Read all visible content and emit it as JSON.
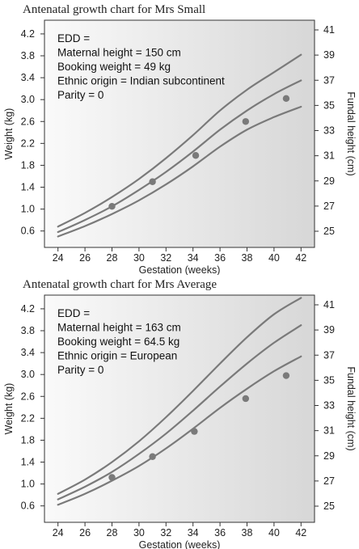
{
  "chart_data": [
    {
      "type": "line",
      "title": "Antenatal growth chart for Mrs Small",
      "info_lines": [
        "EDD =",
        "Maternal height = 150 cm",
        "Booking weight = 49 kg",
        "Ethnic origin = Indian subcontinent",
        "Parity = 0"
      ],
      "xlabel": "Gestation (weeks)",
      "ylabel": "Weight (kg)",
      "y2label": "Fundal height (cm)",
      "xlim": [
        23,
        43
      ],
      "ylim": [
        0.3,
        4.45
      ],
      "x_ticks": [
        24,
        26,
        28,
        30,
        32,
        34,
        36,
        38,
        40,
        42
      ],
      "y_ticks": [
        0.6,
        1.0,
        1.4,
        1.8,
        2.2,
        2.6,
        3.0,
        3.4,
        3.8,
        4.2
      ],
      "y2_ticks": [
        25,
        27,
        29,
        31,
        33,
        35,
        37,
        39,
        41
      ],
      "y_tick_labels": [
        "0.6",
        "1.0",
        "1.4",
        "1.8",
        "2.2",
        "2.6",
        "3.0",
        "3.4",
        "3.8",
        "4.2"
      ],
      "y2_tick_labels": [
        "25",
        "27",
        "29",
        "31",
        "33",
        "35",
        "37",
        "39",
        "41"
      ],
      "series": [
        {
          "x": [
            24,
            26,
            28,
            30,
            32,
            34,
            36,
            38,
            40,
            42
          ],
          "values": [
            0.68,
            0.93,
            1.22,
            1.55,
            1.93,
            2.35,
            2.8,
            3.18,
            3.5,
            3.82
          ]
        },
        {
          "x": [
            24,
            26,
            28,
            30,
            32,
            34,
            36,
            38,
            40,
            42
          ],
          "values": [
            0.58,
            0.8,
            1.05,
            1.35,
            1.68,
            2.05,
            2.45,
            2.8,
            3.1,
            3.35
          ]
        },
        {
          "x": [
            24,
            26,
            28,
            30,
            32,
            34,
            36,
            38,
            40,
            42
          ],
          "values": [
            0.5,
            0.69,
            0.91,
            1.16,
            1.45,
            1.78,
            2.14,
            2.45,
            2.68,
            2.87
          ]
        }
      ],
      "points": {
        "x": [
          28,
          31,
          34.2,
          37.9,
          40.9
        ],
        "values": [
          1.05,
          1.5,
          1.98,
          2.6,
          3.02
        ]
      },
      "colors": {
        "curve": "#7a7a7a",
        "point": "#7a7a7a",
        "plot_bg_left": "#fafafa",
        "plot_bg_right": "#d7d7d7"
      }
    },
    {
      "type": "line",
      "title": "Antenatal growth chart for Mrs Average",
      "info_lines": [
        "EDD =",
        "Maternal height = 163 cm",
        "Booking weight = 64.5 kg",
        "Ethnic origin = European",
        "Parity = 0"
      ],
      "xlabel": "Gestation (weeks)",
      "ylabel": "Weight (kg)",
      "y2label": "Fundal height (cm)",
      "xlim": [
        23,
        43
      ],
      "ylim": [
        0.3,
        4.45
      ],
      "x_ticks": [
        24,
        26,
        28,
        30,
        32,
        34,
        36,
        38,
        40,
        42
      ],
      "y_ticks": [
        0.6,
        1.0,
        1.4,
        1.8,
        2.2,
        2.6,
        3.0,
        3.4,
        3.8,
        4.2
      ],
      "y2_ticks": [
        25,
        27,
        29,
        31,
        33,
        35,
        37,
        39,
        41
      ],
      "y_tick_labels": [
        "0.6",
        "1.0",
        "1.4",
        "1.8",
        "2.2",
        "2.6",
        "3.0",
        "3.4",
        "3.8",
        "4.2"
      ],
      "y2_tick_labels": [
        "25",
        "27",
        "29",
        "31",
        "33",
        "35",
        "37",
        "39",
        "41"
      ],
      "series": [
        {
          "x": [
            24,
            26,
            28,
            30,
            32,
            34,
            36,
            38,
            40,
            42
          ],
          "values": [
            0.82,
            1.08,
            1.4,
            1.78,
            2.22,
            2.7,
            3.2,
            3.68,
            4.1,
            4.4
          ]
        },
        {
          "x": [
            24,
            26,
            28,
            30,
            32,
            34,
            36,
            38,
            40,
            42
          ],
          "values": [
            0.72,
            0.95,
            1.22,
            1.55,
            1.92,
            2.34,
            2.78,
            3.2,
            3.58,
            3.9
          ]
        },
        {
          "x": [
            24,
            26,
            28,
            30,
            32,
            34,
            36,
            38,
            40,
            42
          ],
          "values": [
            0.62,
            0.82,
            1.06,
            1.33,
            1.65,
            2.01,
            2.39,
            2.74,
            3.06,
            3.33
          ]
        }
      ],
      "points": {
        "x": [
          28,
          31,
          34.1,
          37.9,
          40.9
        ],
        "values": [
          1.12,
          1.5,
          1.96,
          2.56,
          2.98
        ]
      },
      "colors": {
        "curve": "#7a7a7a",
        "point": "#7a7a7a",
        "plot_bg_left": "#fafafa",
        "plot_bg_right": "#d7d7d7"
      }
    }
  ]
}
